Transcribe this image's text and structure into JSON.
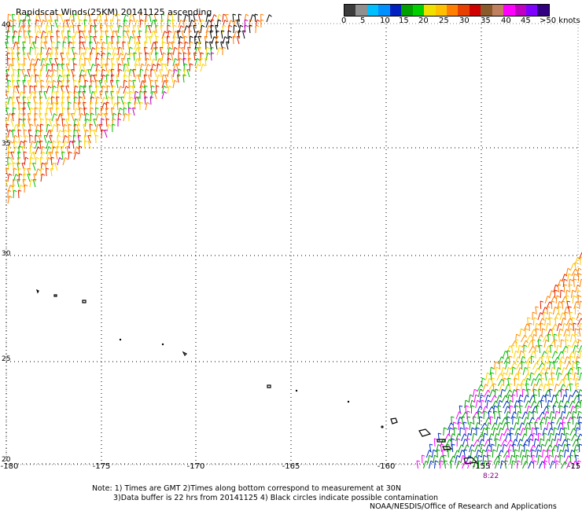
{
  "title": "Rapidscat Winds(25KM) 20141125 ascending",
  "colorbar": {
    "colors": [
      "#3c3c3c",
      "#909090",
      "#00bfff",
      "#0090ff",
      "#0020c0",
      "#00a000",
      "#00d000",
      "#f0e000",
      "#ffc000",
      "#ff8000",
      "#e84000",
      "#d00000",
      "#8b5a2b",
      "#c08060",
      "#ff00ff",
      "#c000c0",
      "#8000ff",
      "#300080"
    ],
    "labels": [
      "0",
      "5",
      "10",
      "15",
      "20",
      "25",
      "30",
      "35",
      "40",
      "45",
      ">50 knots"
    ]
  },
  "axes": {
    "lat_labels": [
      "40",
      "35",
      "30",
      "25",
      "20"
    ],
    "lon_labels": [
      "-180",
      "-175",
      "-170",
      "-165",
      "-160",
      "-155",
      "-15"
    ],
    "lat_range": [
      20,
      40
    ],
    "lon_range": [
      -180,
      -150
    ],
    "grid": "dotted"
  },
  "time_label": "8:22",
  "notes": [
    "Note: 1) Times are GMT 2)Times along bottom correspond to measurement at 30N",
    "3)Data buffer is 22 hrs from 20141125 4) Black circles indicate possible contamination",
    "NOAA/NESDIS/Office of Research and Applications"
  ]
}
